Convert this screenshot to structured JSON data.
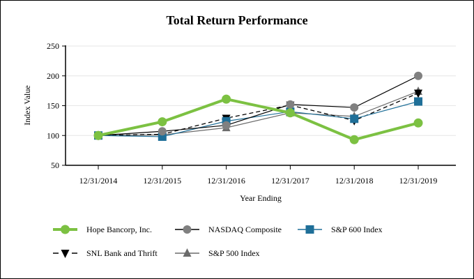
{
  "chart_data": {
    "type": "line",
    "title": "Total Return Performance",
    "xlabel": "Year Ending",
    "ylabel": "Index Value",
    "ylim": [
      50,
      250
    ],
    "yticks": [
      50,
      100,
      150,
      200,
      250
    ],
    "grid": true,
    "legend_position": "bottom",
    "categories": [
      "12/31/2014",
      "12/31/2015",
      "12/31/2016",
      "12/31/2017",
      "12/31/2018",
      "12/31/2019"
    ],
    "series": [
      {
        "name": "Hope Bancorp, Inc.",
        "values": [
          100,
          123,
          161,
          138,
          93,
          121
        ],
        "color": "#7cc142",
        "marker": "circle",
        "dash": false
      },
      {
        "name": "NASDAQ Composite",
        "values": [
          100,
          107,
          117,
          152,
          147,
          200
        ],
        "color": "#000000",
        "marker_color": "#808080",
        "marker": "circle",
        "dash": false
      },
      {
        "name": "S&P 600 Index",
        "values": [
          100,
          98,
          124,
          140,
          128,
          157
        ],
        "color": "#1f6f98",
        "marker": "square",
        "dash": false
      },
      {
        "name": "SNL Bank and Thrift",
        "values": [
          100,
          102,
          129,
          151,
          125,
          171
        ],
        "color": "#000000",
        "marker": "triangle-down",
        "dash": true
      },
      {
        "name": "S&P 500 Index",
        "values": [
          100,
          101,
          113,
          138,
          132,
          174
        ],
        "color": "#6b6b6b",
        "marker": "triangle-up",
        "dash": false
      }
    ]
  }
}
